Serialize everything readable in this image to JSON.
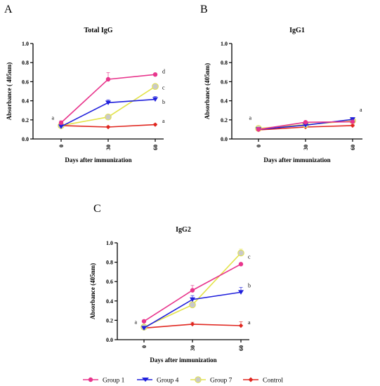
{
  "colors": {
    "group1": "#e8358c",
    "group4": "#1f1fdc",
    "group7": "#e3e34a",
    "control": "#e0261f"
  },
  "icons": {
    "group1": "circle-marker-icon",
    "group4": "triangle-down-marker-icon",
    "group7": "circle-marker-icon",
    "control": "diamond-marker-icon"
  },
  "legend": [
    "Group 1",
    "Group 4",
    "Group 7",
    "Control"
  ],
  "chart_data": [
    {
      "panel": "A",
      "type": "line",
      "title": "Total IgG",
      "xlabel": "Days after immunization",
      "ylabel": "Absorbance ( 405nm)",
      "x": [
        0,
        30,
        60
      ],
      "xticks": [
        "0",
        "30",
        "60"
      ],
      "ylim": [
        0,
        1.0
      ],
      "yticks": [
        "0.0",
        "0.2",
        "0.4",
        "0.6",
        "0.8",
        "1.0"
      ],
      "grid": false,
      "series": [
        {
          "name": "Group 1",
          "values": [
            0.17,
            0.625,
            0.675
          ],
          "errors": [
            0.02,
            0.07,
            0.01
          ]
        },
        {
          "name": "Group 4",
          "values": [
            0.13,
            0.38,
            0.415
          ],
          "errors": [
            0.02,
            0.03,
            0.03
          ]
        },
        {
          "name": "Group 7",
          "values": [
            0.14,
            0.23,
            0.55
          ],
          "errors": [
            0.02,
            0.01,
            0.01
          ]
        },
        {
          "name": "Control",
          "values": [
            0.14,
            0.125,
            0.15
          ],
          "errors": [
            0.01,
            0.01,
            0.01
          ]
        }
      ],
      "annotations": [
        {
          "text": "a",
          "x": 0,
          "y": 0.225
        },
        {
          "text": "d",
          "x": 60,
          "y": 0.71
        },
        {
          "text": "c",
          "x": 60,
          "y": 0.54
        },
        {
          "text": "b",
          "x": 60,
          "y": 0.39
        },
        {
          "text": "a",
          "x": 60,
          "y": 0.19
        }
      ]
    },
    {
      "panel": "B",
      "type": "line",
      "title": "IgG1",
      "xlabel": "Days after immunization",
      "ylabel": "Absorbance (405nm)",
      "x": [
        0,
        30,
        60
      ],
      "xticks": [
        "0",
        "30",
        "60"
      ],
      "ylim": [
        0,
        1.0
      ],
      "yticks": [
        "0.0",
        "0.2",
        "0.4",
        "0.6",
        "0.8",
        "1.0"
      ],
      "grid": false,
      "series": [
        {
          "name": "Group 1",
          "values": [
            0.1,
            0.175,
            0.18
          ],
          "errors": [
            0.02,
            0.01,
            0.01
          ]
        },
        {
          "name": "Group 4",
          "values": [
            0.1,
            0.145,
            0.205
          ],
          "errors": [
            0.02,
            0.01,
            0.02
          ]
        },
        {
          "name": "Group 7",
          "values": [
            0.11,
            0.15,
            0.19
          ],
          "errors": [
            0.02,
            0.01,
            0.01
          ]
        },
        {
          "name": "Control",
          "values": [
            0.095,
            0.125,
            0.14
          ],
          "errors": [
            0.01,
            0.01,
            0.01
          ]
        }
      ],
      "annotations": [
        {
          "text": "a",
          "x": 0,
          "y": 0.225
        },
        {
          "text": "a",
          "x": 60,
          "y": 0.31
        }
      ]
    },
    {
      "panel": "C",
      "type": "line",
      "title": "IgG2",
      "xlabel": "Days after immunization",
      "ylabel": "Absorbance (405nm)",
      "x": [
        0,
        30,
        60
      ],
      "xticks": [
        "0",
        "30",
        "60"
      ],
      "ylim": [
        0,
        1.0
      ],
      "yticks": [
        "0.0",
        "0.2",
        "0.4",
        "0.6",
        "0.8",
        "1.0"
      ],
      "grid": false,
      "series": [
        {
          "name": "Group 1",
          "values": [
            0.19,
            0.51,
            0.78
          ],
          "errors": [
            0.01,
            0.05,
            0.01
          ]
        },
        {
          "name": "Group 4",
          "values": [
            0.12,
            0.415,
            0.49
          ],
          "errors": [
            0.01,
            0.04,
            0.05
          ]
        },
        {
          "name": "Group 7",
          "values": [
            0.13,
            0.36,
            0.895
          ],
          "errors": [
            0.01,
            0.02,
            0.04
          ]
        },
        {
          "name": "Control",
          "values": [
            0.12,
            0.16,
            0.145
          ],
          "errors": [
            0.01,
            0.02,
            0.04
          ]
        }
      ],
      "annotations": [
        {
          "text": "a",
          "x": 0,
          "y": 0.185
        },
        {
          "text": "c",
          "x": 60,
          "y": 0.86
        },
        {
          "text": "b",
          "x": 60,
          "y": 0.56
        },
        {
          "text": "a",
          "x": 60,
          "y": 0.18
        }
      ]
    }
  ]
}
